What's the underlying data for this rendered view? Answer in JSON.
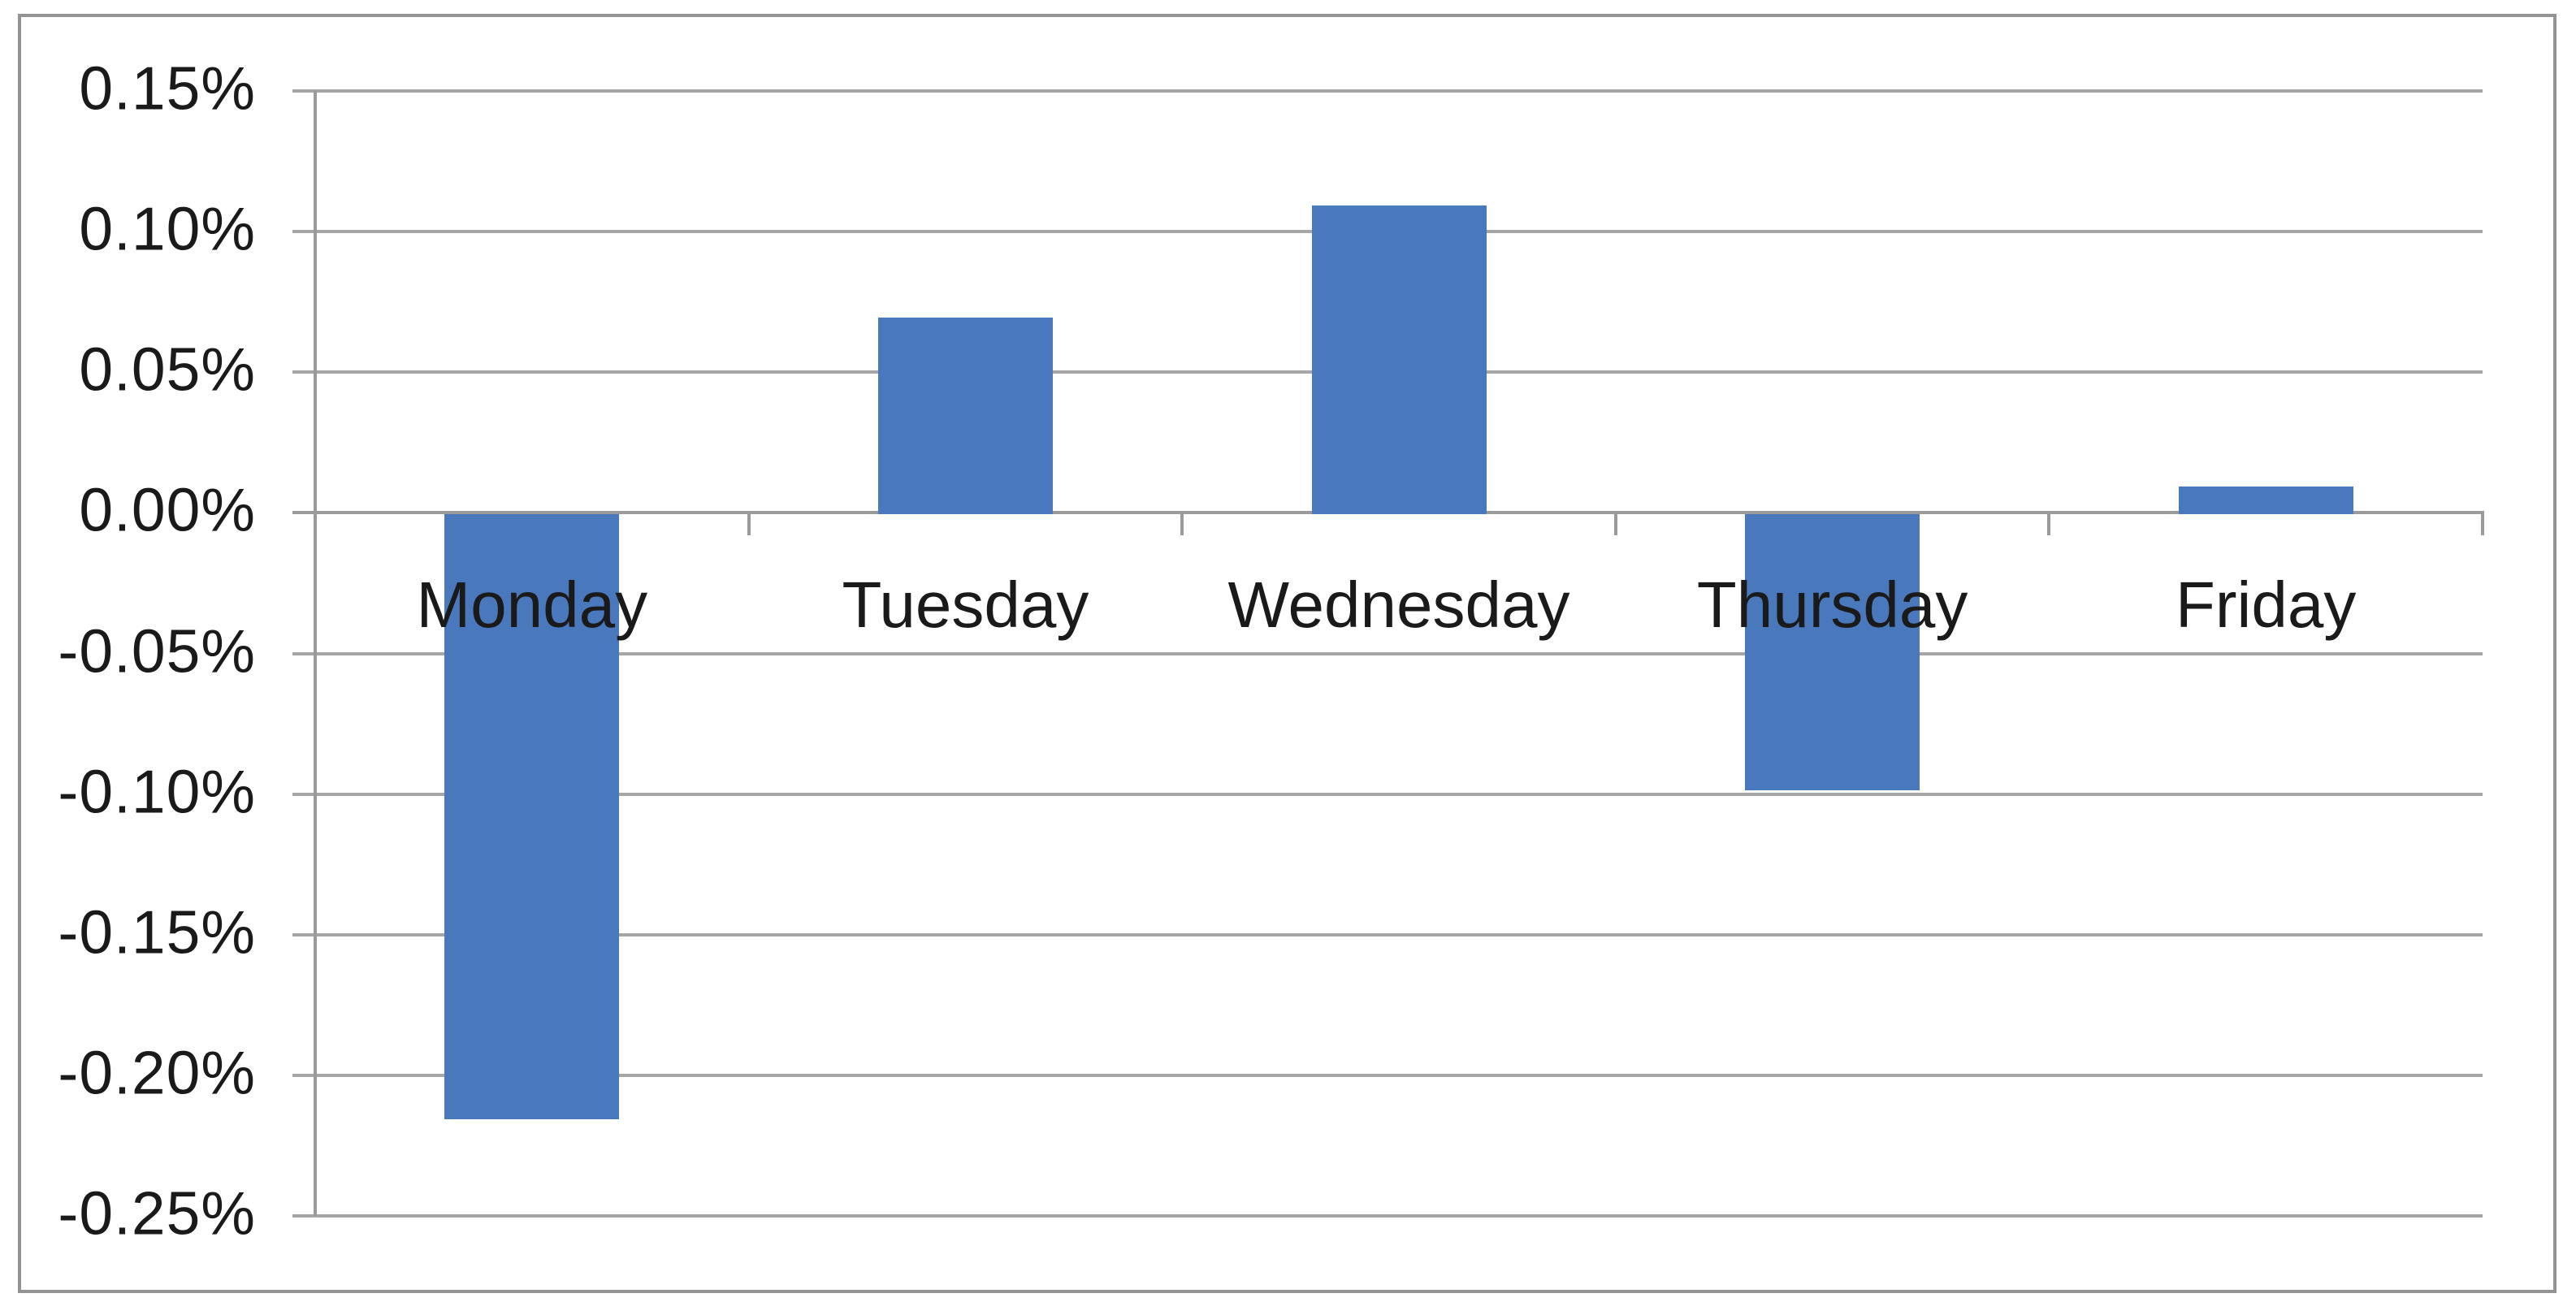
{
  "chart_data": {
    "type": "bar",
    "title": "",
    "xlabel": "",
    "ylabel": "",
    "categories": [
      "Monday",
      "Tuesday",
      "Wednesday",
      "Thursday",
      "Friday"
    ],
    "values": [
      -0.215,
      0.07,
      0.11,
      -0.098,
      0.01
    ],
    "values_unit": "percent",
    "ylim": [
      -0.25,
      0.15
    ],
    "ytick_step": 0.05,
    "yticks": [
      0.15,
      0.1,
      0.05,
      0.0,
      -0.05,
      -0.1,
      -0.15,
      -0.2,
      -0.25
    ],
    "ytick_labels": [
      "0.15%",
      "0.10%",
      "0.05%",
      "0.00%",
      "-0.05%",
      "-0.10%",
      "-0.15%",
      "-0.20%",
      "-0.25%"
    ],
    "grid": true,
    "legend_position": "none",
    "colors": {
      "bar": "#4a78bd",
      "gridline": "#a6a6a6",
      "axis": "#9a9a9a",
      "chart_border": "#949494",
      "label_text": "#1a1a1a",
      "background": "#ffffff"
    }
  }
}
